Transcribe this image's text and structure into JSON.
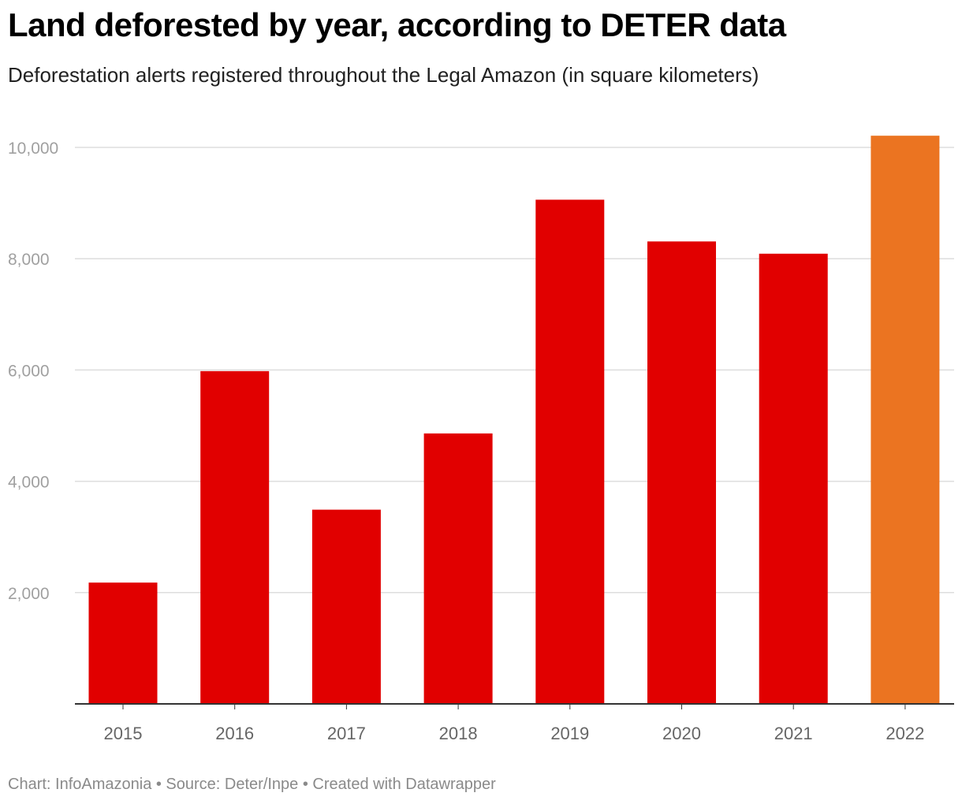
{
  "chart_data": {
    "type": "bar",
    "title": "Land deforested by year, according to DETER data",
    "subtitle": "Deforestation alerts registered throughout the Legal Amazon (in square kilometers)",
    "categories": [
      "2015",
      "2016",
      "2017",
      "2018",
      "2019",
      "2020",
      "2021",
      "2022"
    ],
    "values": [
      2180,
      5980,
      3490,
      4860,
      9060,
      8310,
      8090,
      10210
    ],
    "highlight_index": 7,
    "colors": {
      "default": "#e10000",
      "highlight": "#eb7421",
      "grid": "#dddddd",
      "axis": "#333333"
    },
    "yticks": [
      2000,
      4000,
      6000,
      8000,
      10000
    ],
    "ytick_labels": [
      "2,000",
      "4,000",
      "6,000",
      "8,000",
      "10,000"
    ],
    "ylim": [
      0,
      10000
    ],
    "xlabel": "",
    "ylabel": ""
  },
  "footer": {
    "text": "Chart: InfoAmazonia • Source: Deter/Inpe • Created with Datawrapper"
  }
}
